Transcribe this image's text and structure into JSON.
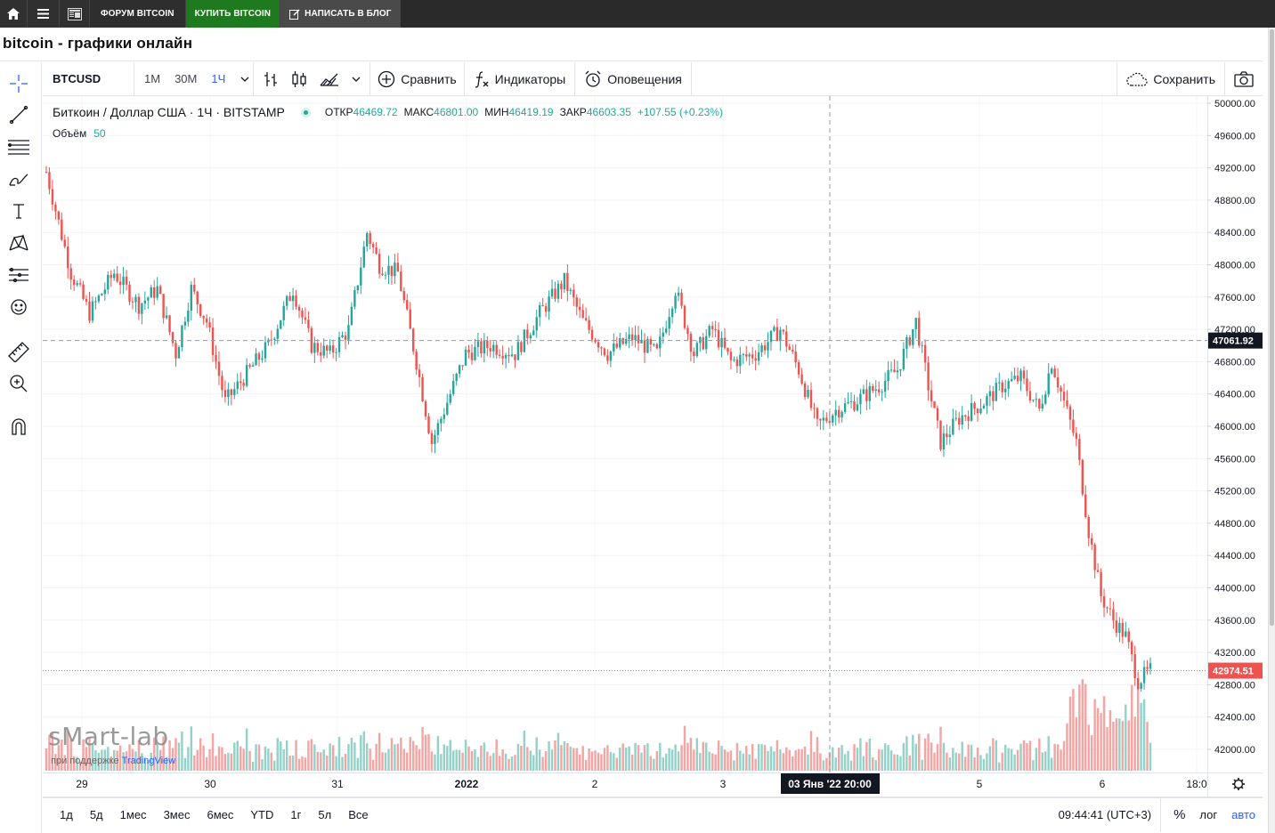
{
  "topnav": {
    "home_icon": "home-icon",
    "menu_icon": "menu-icon",
    "news_icon": "news-icon",
    "forum_label": "ФОРУМ BITCOIN",
    "buy_label": "КУПИТЬ BITCOIN",
    "blog_label": "НАПИСАТЬ В БЛОГ"
  },
  "page_title": "bitcoin - графики онлайн",
  "toolbar": {
    "symbol": "BTCUSD",
    "intervals": [
      "1М",
      "30М",
      "1Ч"
    ],
    "active_interval": "1Ч",
    "compare_label": "Сравнить",
    "indicators_label": "Индикаторы",
    "alerts_label": "Оповещения",
    "save_label": "Сохранить"
  },
  "legend": {
    "title": "Биткоин / Доллар США · 1Ч · BITSTAMP",
    "open_label": "ОТКР",
    "open": "46469.72",
    "high_label": "МАКС",
    "high": "46801.00",
    "low_label": "МИН",
    "low": "46419.19",
    "close_label": "ЗАКР",
    "close": "46603.35",
    "change": "+107.55 (+0.23%)",
    "volume_label": "Объём",
    "volume": "50"
  },
  "watermark": {
    "brand": "sMart-lab",
    "sub": "при поддержке",
    "sub_brand": "TradingView"
  },
  "price_axis": {
    "labels": [
      "50000.00",
      "49600.00",
      "49200.00",
      "48800.00",
      "48400.00",
      "48000.00",
      "47600.00",
      "47200.00",
      "46800.00",
      "46400.00",
      "46000.00",
      "45600.00",
      "45200.00",
      "44800.00",
      "44400.00",
      "44000.00",
      "43600.00",
      "43200.00",
      "42800.00",
      "42400.00",
      "42000.00"
    ],
    "crosshair_price": "47061.92",
    "last_price": "42974.51"
  },
  "time_axis": {
    "labels": [
      "29",
      "30",
      "31",
      "2022",
      "2",
      "3",
      "5",
      "6",
      "18:0"
    ],
    "crosshair_time": "03 Янв '22   20:00"
  },
  "bottom": {
    "ranges": [
      "1д",
      "5д",
      "1мес",
      "3мес",
      "6мес",
      "YTD",
      "1г",
      "5л",
      "Все"
    ],
    "clock": "09:44:41 (UTC+3)",
    "percent": "%",
    "log": "лог",
    "auto": "авто"
  },
  "colors": {
    "up": "#26a69a",
    "down": "#ef5350",
    "volume_up": "#93d2c8",
    "volume_down": "#f3a5a4",
    "accent": "#2962ff"
  },
  "chart_data": {
    "type": "candlestick",
    "symbol": "BTCUSD",
    "interval": "1H",
    "ylim": [
      41800,
      50100
    ],
    "x_ticks": [
      "29",
      "30",
      "31",
      "2022",
      "2",
      "3",
      "5",
      "6",
      "18:0"
    ],
    "ohlc_keyframes": [
      [
        0,
        49150
      ],
      [
        8,
        47900
      ],
      [
        14,
        47400
      ],
      [
        22,
        47900
      ],
      [
        30,
        47500
      ],
      [
        36,
        47700
      ],
      [
        42,
        46900
      ],
      [
        47,
        47700
      ],
      [
        52,
        47300
      ],
      [
        58,
        46300
      ],
      [
        64,
        46600
      ],
      [
        72,
        47000
      ],
      [
        80,
        47700
      ],
      [
        86,
        47000
      ],
      [
        92,
        46900
      ],
      [
        98,
        47200
      ],
      [
        104,
        48400
      ],
      [
        108,
        48000
      ],
      [
        114,
        47900
      ],
      [
        120,
        46800
      ],
      [
        125,
        45800
      ],
      [
        130,
        46300
      ],
      [
        136,
        46900
      ],
      [
        144,
        47000
      ],
      [
        152,
        46900
      ],
      [
        160,
        47400
      ],
      [
        168,
        47800
      ],
      [
        174,
        47300
      ],
      [
        182,
        46900
      ],
      [
        190,
        47100
      ],
      [
        198,
        46900
      ],
      [
        204,
        47700
      ],
      [
        210,
        46900
      ],
      [
        216,
        47200
      ],
      [
        222,
        46800
      ],
      [
        230,
        46900
      ],
      [
        238,
        47200
      ],
      [
        244,
        46700
      ],
      [
        250,
        46000
      ],
      [
        256,
        46200
      ],
      [
        262,
        46300
      ],
      [
        270,
        46500
      ],
      [
        276,
        46700
      ],
      [
        282,
        47300
      ],
      [
        286,
        46500
      ],
      [
        290,
        45800
      ],
      [
        296,
        46100
      ],
      [
        304,
        46300
      ],
      [
        310,
        46500
      ],
      [
        316,
        46600
      ],
      [
        322,
        46200
      ],
      [
        326,
        46800
      ],
      [
        330,
        46300
      ],
      [
        334,
        45800
      ],
      [
        338,
        44700
      ],
      [
        342,
        43900
      ],
      [
        346,
        43600
      ],
      [
        350,
        43400
      ],
      [
        354,
        42850
      ],
      [
        358,
        42974
      ]
    ],
    "volume_range": [
      0,
      100
    ]
  }
}
